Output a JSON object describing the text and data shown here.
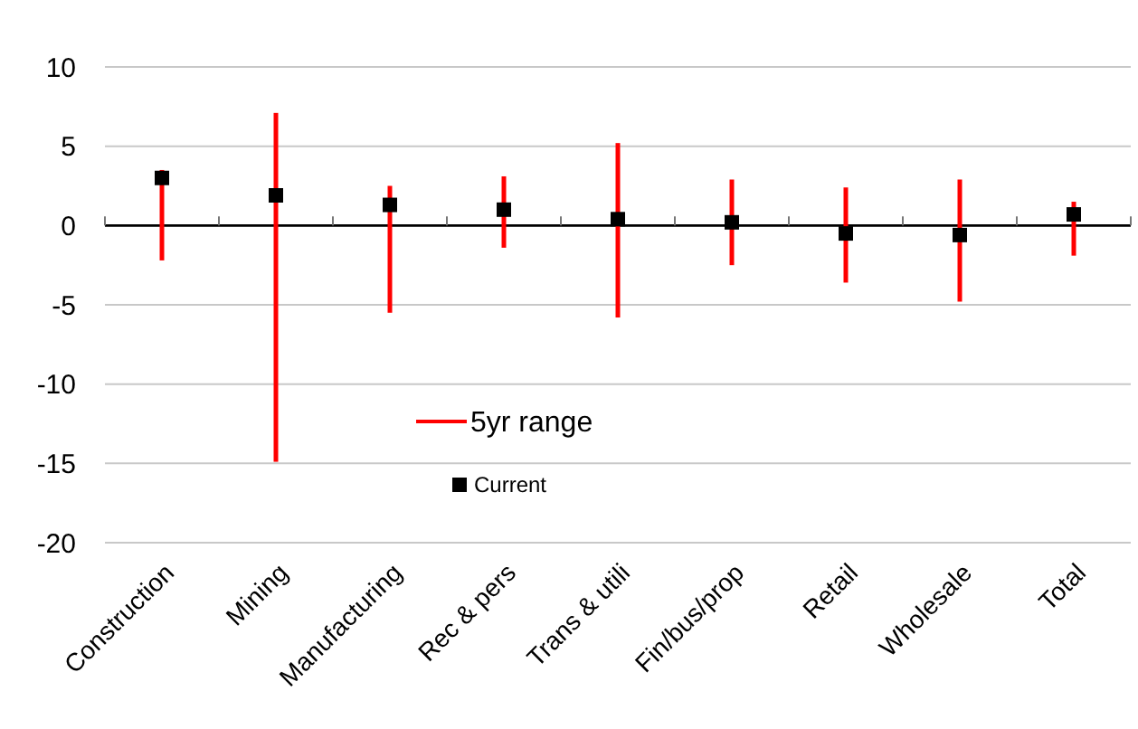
{
  "chart_data": {
    "type": "bar",
    "categories": [
      "Construction",
      "Mining",
      "Manufacturing",
      "Rec & pers",
      "Trans & utili",
      "Fin/bus/prop",
      "Retail",
      "Wholesale",
      "Total"
    ],
    "series": [
      {
        "name": "5yr range",
        "color": "#ff0000",
        "base": [
          -2.2,
          -14.9,
          -5.5,
          -1.4,
          -5.8,
          -2.5,
          -3.6,
          -4.8,
          -1.9
        ],
        "values": [
          5.7,
          22.0,
          8.0,
          4.5,
          11.0,
          5.4,
          6.0,
          7.7,
          3.4
        ]
      },
      {
        "name": "Current",
        "type": "scatter",
        "color": "#000000",
        "marker": "square",
        "values": [
          3.0,
          1.9,
          1.3,
          1.0,
          0.4,
          0.2,
          -0.5,
          -0.6,
          0.7
        ]
      }
    ],
    "ylim": [
      -20,
      10
    ],
    "yticks": [
      -20,
      -15,
      -10,
      -5,
      0,
      5,
      10
    ],
    "grid": "y",
    "legend": "bottom"
  }
}
